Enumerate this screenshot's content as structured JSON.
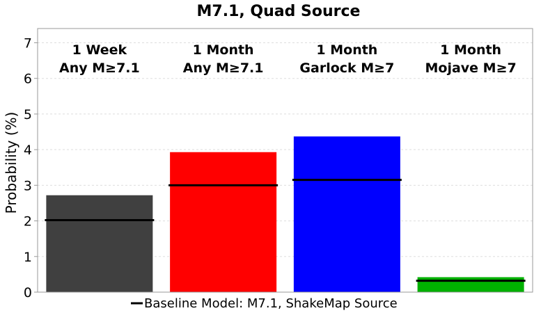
{
  "chart_data": {
    "type": "bar",
    "title": "M7.1, Quad Source",
    "ylabel": "Probability (%)",
    "ylim": [
      0,
      7.4
    ],
    "yticks": [
      "0",
      "1",
      "2",
      "3",
      "4",
      "5",
      "6",
      "7"
    ],
    "grid": true,
    "categories": [
      {
        "line1": "1 Week",
        "line2": "Any M≥7.1"
      },
      {
        "line1": "1 Month",
        "line2": "Any M≥7.1"
      },
      {
        "line1": "1 Month",
        "line2": "Garlock M≥7"
      },
      {
        "line1": "1 Month",
        "line2": "Mojave M≥7"
      }
    ],
    "values": [
      2.72,
      3.93,
      4.37,
      0.42
    ],
    "colors": [
      "#404040",
      "#ff0000",
      "#0000ff",
      "#00b000"
    ],
    "baseline": {
      "name": "Baseline Model: M7.1, ShakeMap Source",
      "values": [
        2.02,
        3.0,
        3.15,
        0.32
      ],
      "color": "#000000"
    },
    "legend_position": "bottom-center"
  }
}
